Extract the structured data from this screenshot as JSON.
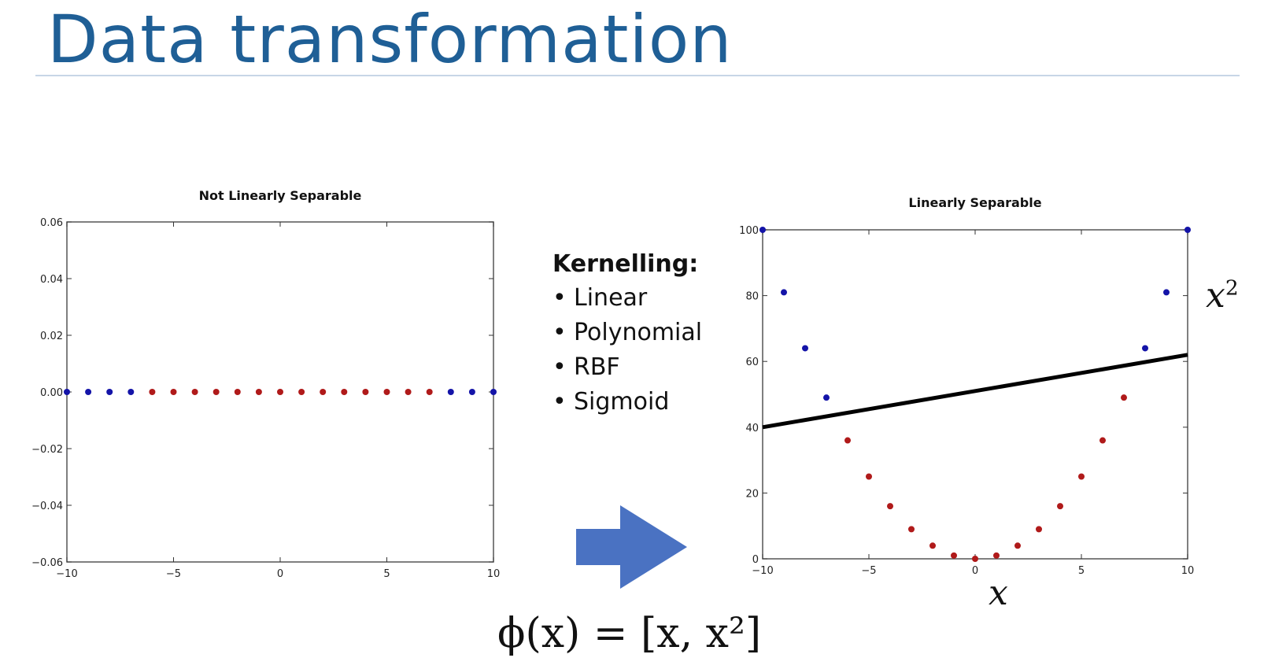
{
  "slide": {
    "title": "Data transformation",
    "kernel_heading": "Kernelling:",
    "kernels": [
      "Linear",
      "Polynomial",
      "RBF",
      "Sigmoid"
    ],
    "x2_label": "x",
    "x2_exp": "2",
    "x_label": "x",
    "formula": "ϕ(x) = [x, x²]"
  },
  "colors": {
    "title": "#1f5f96",
    "blue_points": "#1414a8",
    "red_points": "#b01a1a",
    "arrow": "#4a72c2"
  },
  "chart_data": [
    {
      "type": "scatter",
      "title": "Not Linearly Separable",
      "xlim": [
        -10,
        10
      ],
      "ylim": [
        -0.06,
        0.06
      ],
      "xticks": [
        "−10",
        "−5",
        "0",
        "5",
        "10"
      ],
      "yticks": [
        "0.06",
        "0.04",
        "0.02",
        "0.00",
        "−0.02",
        "−0.04",
        "−0.06"
      ],
      "series": [
        {
          "color": "blue",
          "x": [
            -10,
            -9,
            -8,
            -7,
            8,
            9,
            10
          ],
          "y": [
            0,
            0,
            0,
            0,
            0,
            0,
            0
          ]
        },
        {
          "color": "red",
          "x": [
            -6,
            -5,
            -4,
            -3,
            -2,
            -1,
            0,
            1,
            2,
            3,
            4,
            5,
            6,
            7
          ],
          "y": [
            0,
            0,
            0,
            0,
            0,
            0,
            0,
            0,
            0,
            0,
            0,
            0,
            0,
            0
          ]
        }
      ]
    },
    {
      "type": "scatter",
      "title": "Linearly Separable",
      "xlim": [
        -10,
        10
      ],
      "ylim": [
        0,
        100
      ],
      "xticks": [
        "−10",
        "−5",
        "0",
        "5",
        "10"
      ],
      "yticks": [
        "100",
        "80",
        "60",
        "40",
        "20",
        "0"
      ],
      "series": [
        {
          "color": "blue",
          "x": [
            -10,
            -9,
            -8,
            -7,
            8,
            9,
            10
          ],
          "y": [
            100,
            81,
            64,
            49,
            64,
            81,
            100
          ]
        },
        {
          "color": "red",
          "x": [
            -6,
            -5,
            -4,
            -3,
            -2,
            -1,
            0,
            1,
            2,
            3,
            4,
            5,
            6,
            7
          ],
          "y": [
            36,
            25,
            16,
            9,
            4,
            1,
            0,
            1,
            4,
            9,
            16,
            25,
            36,
            49
          ]
        }
      ],
      "decision_line": {
        "x": [
          -10,
          10
        ],
        "y": [
          40,
          62
        ]
      }
    }
  ]
}
